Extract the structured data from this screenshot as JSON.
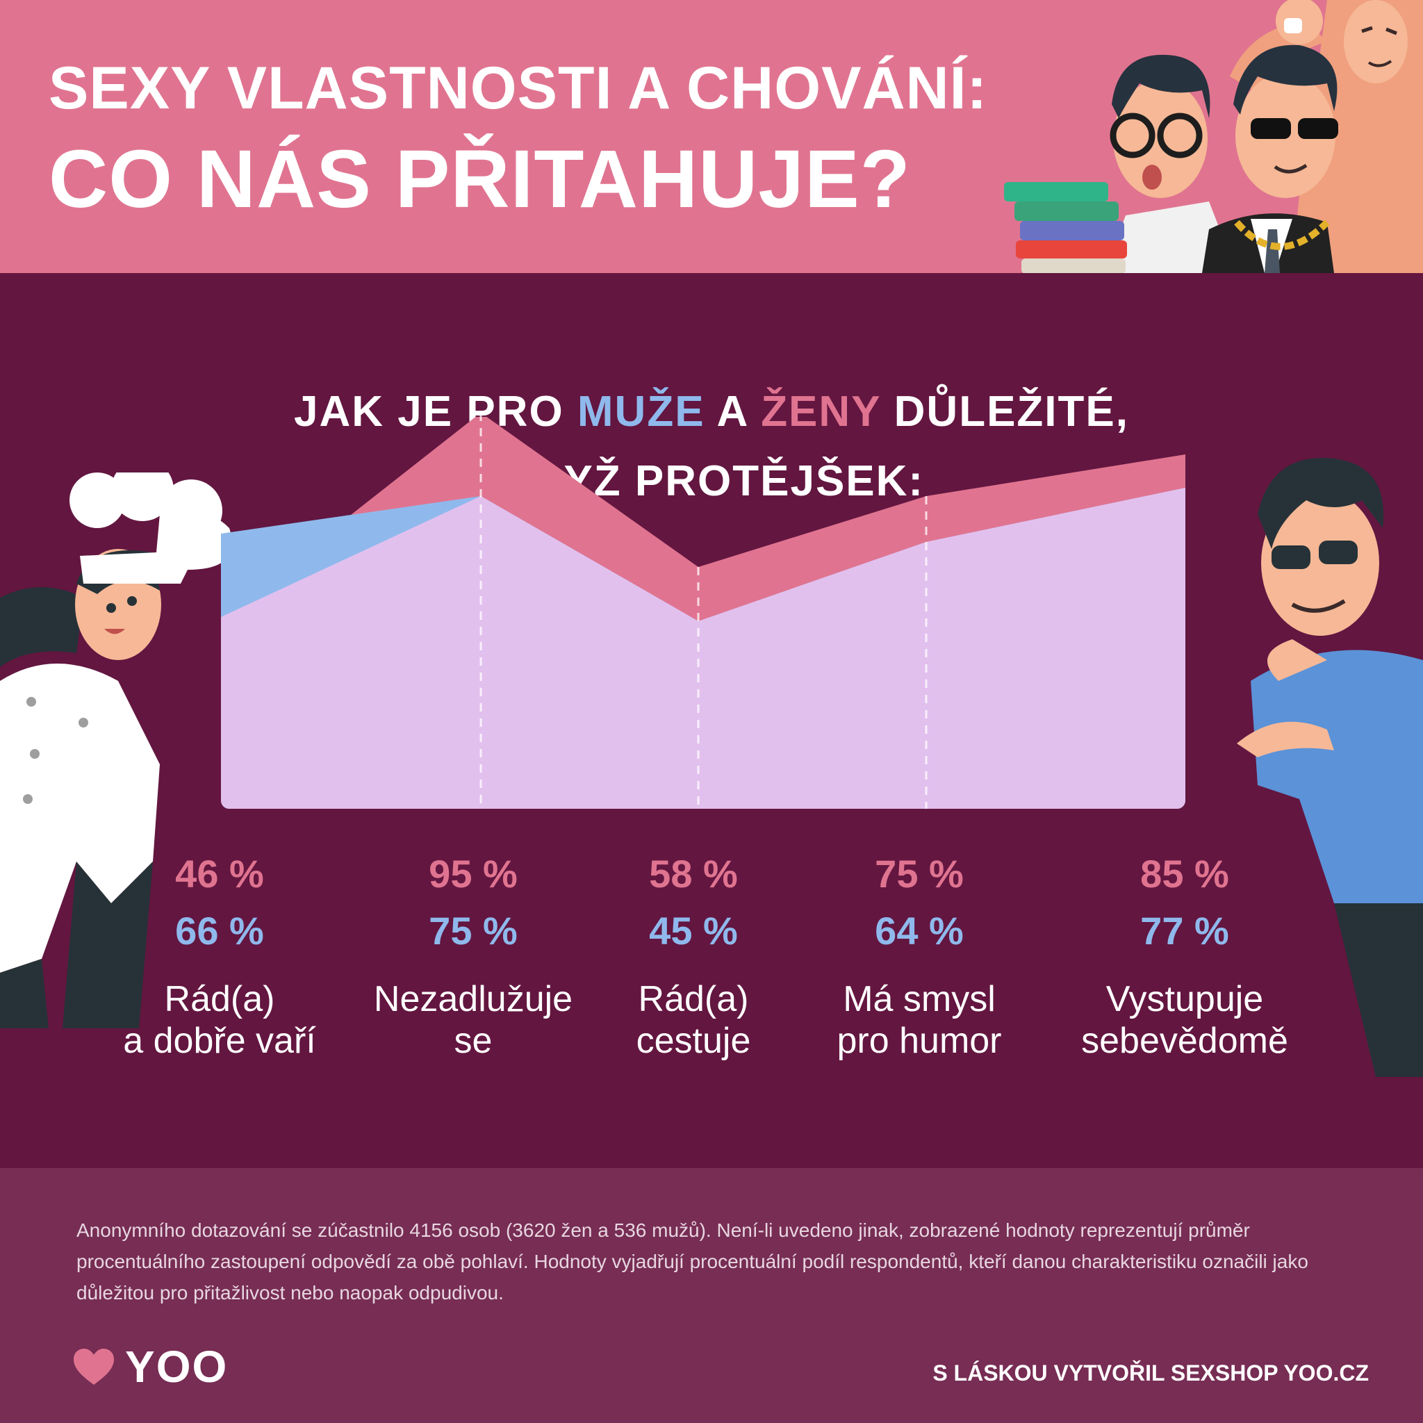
{
  "header": {
    "title_line1": "SEXY VLASTNOSTI A CHOVÁNÍ:",
    "title_line2": "CO NÁS PŘITAHUJE?"
  },
  "subtitle": {
    "part1": "JAK JE PRO ",
    "men_word": "MUŽE",
    "part2": " A ",
    "women_word": "ŽENY",
    "part3": " DŮLEŽITÉ,",
    "line2": "KDYŽ PROTĚJŠEK:"
  },
  "colors": {
    "men": "#8fb9ec",
    "women": "#e07490",
    "overlap": "#e2c0ee",
    "background": "#631640",
    "header": "#e07490",
    "footer": "#772d54"
  },
  "chart_data": {
    "type": "area",
    "categories": [
      "Rád(a) a dobře vaří",
      "Nezadlužuje se",
      "Rád(a) cestuje",
      "Má smysl pro humor",
      "Vystupuje sebevědomě"
    ],
    "category_lines": [
      [
        "Rád(a)",
        "a dobře vaří"
      ],
      [
        "Nezadlužuje",
        "se"
      ],
      [
        "Rád(a)",
        "cestuje"
      ],
      [
        "Má smysl",
        "pro humor"
      ],
      [
        "Vystupuje",
        "sebevědomě"
      ]
    ],
    "series": [
      {
        "color": "#e07490",
        "values": [
          46,
          95,
          58,
          75,
          85
        ],
        "labels": [
          "46 %",
          "95 %",
          "58 %",
          "75 %",
          "85 %"
        ]
      },
      {
        "color": "#8fb9ec",
        "values": [
          66,
          75,
          45,
          64,
          77
        ],
        "labels": [
          "66 %",
          "75 %",
          "45 %",
          "64 %",
          "77 %"
        ]
      }
    ],
    "ylim": [
      0,
      100
    ]
  },
  "footer": {
    "note": "Anonymního dotazování se zúčastnilo 4156 osob (3620 žen a 536 mužů). Není-li uvedeno jinak, zobrazené hodnoty reprezentují průměr procentuálního zastoupení odpovědí za obě pohlaví. Hodnoty vyjadřují procentuální podíl respondentů, kteří danou charakteristiku označili jako důležitou pro přitažlivost nebo naopak odpudivou.",
    "logo_text": "YOO",
    "credit": "S LÁSKOU VYTVOŘIL SEXSHOP YOO.CZ"
  },
  "icons": [
    "heart-icon"
  ]
}
